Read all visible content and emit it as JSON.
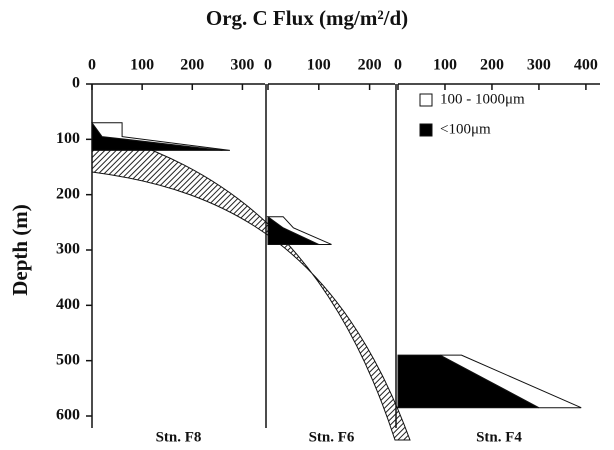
{
  "chart_data": [
    {
      "type": "area",
      "title": "Org. C Flux (mg/m²/d)",
      "ylabel": "Depth (m)",
      "xlabel": "Stn. F8",
      "ylim": [
        0,
        600
      ],
      "yticks": [
        0,
        100,
        200,
        300,
        400,
        500,
        600
      ],
      "xlim": [
        0,
        345
      ],
      "xticks": [
        0,
        100,
        200,
        300
      ],
      "y": [
        70,
        95,
        120
      ],
      "series": [
        {
          "name": "<100μm",
          "color": "#000000",
          "values": [
            0,
            20,
            260
          ]
        },
        {
          "name": "100 - 1000μm",
          "color": "#ffffff",
          "values": [
            60,
            40,
            15
          ]
        }
      ]
    },
    {
      "type": "area",
      "xlabel": "Stn. F6",
      "xlim": [
        0,
        250
      ],
      "xticks": [
        0,
        100,
        200
      ],
      "y": [
        240,
        260,
        290
      ],
      "series": [
        {
          "name": "<100μm",
          "color": "#000000",
          "values": [
            0,
            30,
            100
          ]
        },
        {
          "name": "100 - 1000μm",
          "color": "#ffffff",
          "values": [
            30,
            20,
            25
          ]
        }
      ]
    },
    {
      "type": "area",
      "xlabel": "Stn. F4",
      "xlim": [
        0,
        430
      ],
      "xticks": [
        0,
        100,
        200,
        300,
        400
      ],
      "y": [
        490,
        585
      ],
      "legend": true,
      "series": [
        {
          "name": "100 - 1000μm",
          "color": "#ffffff",
          "values": [
            45,
            90
          ]
        },
        {
          "name": "<100μm",
          "color": "#000000",
          "values": [
            90,
            300
          ]
        }
      ]
    }
  ]
}
